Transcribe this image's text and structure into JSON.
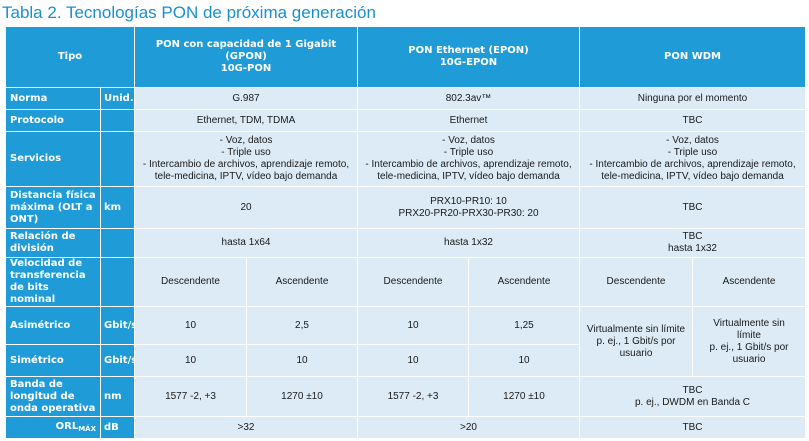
{
  "title": "Tabla 2. Tecnologías PON de próxima generación",
  "colors": {
    "accent": "#1f9cd8",
    "cell": "#dcebf6",
    "title": "#1a8fd0"
  },
  "headers": {
    "tipo": "Tipo",
    "gpon_l1": "PON con capacidad de 1 Gigabit",
    "gpon_l2": "(GPON)",
    "gpon_l3": "10G-PON",
    "epon_l1": "PON Ethernet (EPON)",
    "epon_l2": "10G-EPON",
    "wdm": "PON WDM"
  },
  "rows": {
    "norma": {
      "label": "Norma",
      "unit": "Unid.",
      "gpon": "G.987",
      "epon": "802.3av™",
      "wdm": "Ninguna por el momento"
    },
    "protocolo": {
      "label": "Protocolo",
      "unit": "",
      "gpon": "Ethernet, TDM, TDMA",
      "epon": "Ethernet",
      "wdm": "TBC"
    },
    "servicios": {
      "label": "Servicios",
      "unit": "",
      "l1": "- Voz, datos",
      "l2": "- Triple uso",
      "l3": "- Intercambio de archivos, aprendizaje remoto,",
      "l4": "tele-medicina, IPTV, vídeo bajo demanda"
    },
    "distancia": {
      "label": "Distancia física máxima (OLT a ONT)",
      "unit": "km",
      "gpon": "20",
      "epon_l1": "PRX10-PR10: 10",
      "epon_l2": "PRX20-PR20-PRX30-PR30: 20",
      "wdm": "TBC"
    },
    "relacion": {
      "label": "Relación de división",
      "unit": "",
      "gpon": "hasta 1x64",
      "epon": "hasta 1x32",
      "wdm_l1": "TBC",
      "wdm_l2": "hasta 1x32"
    },
    "velocidad": {
      "label": "Velocidad de transferencia de bits nominal",
      "unit": "",
      "down": "Descendente",
      "up": "Ascendente"
    },
    "asimetrico": {
      "label": "Asimétrico",
      "unit": "Gbit/s",
      "gpon_down": "10",
      "gpon_up": "2,5",
      "epon_down": "10",
      "epon_up": "1,25"
    },
    "simetrico": {
      "label": "Simétrico",
      "unit": "Gbit/s",
      "gpon_down": "10",
      "gpon_up": "10",
      "epon_down": "10",
      "epon_up": "10"
    },
    "wdm_speed": {
      "down_l1": "Virtualmente sin límite",
      "down_l2": "p. ej., 1 Gbit/s por",
      "down_l3": "usuario",
      "up_l1": "Virtualmente sin",
      "up_l2": "límite",
      "up_l3": "p. ej., 1 Gbit/s por",
      "up_l4": "usuario"
    },
    "banda": {
      "label": "Banda de longitud de onda operativa",
      "unit": "nm",
      "gpon_down": "1577 -2, +3",
      "gpon_up": "1270 ±10",
      "epon_down": "1577 -2, +3",
      "epon_up": "1270 ±10",
      "wdm_l1": "TBC",
      "wdm_l2": "p. ej., DWDM en Banda C"
    },
    "orl": {
      "label_main": "ORL",
      "label_sub": "MÁX",
      "unit": "dB",
      "gpon": ">32",
      "epon": ">20",
      "wdm": "TBC"
    }
  }
}
